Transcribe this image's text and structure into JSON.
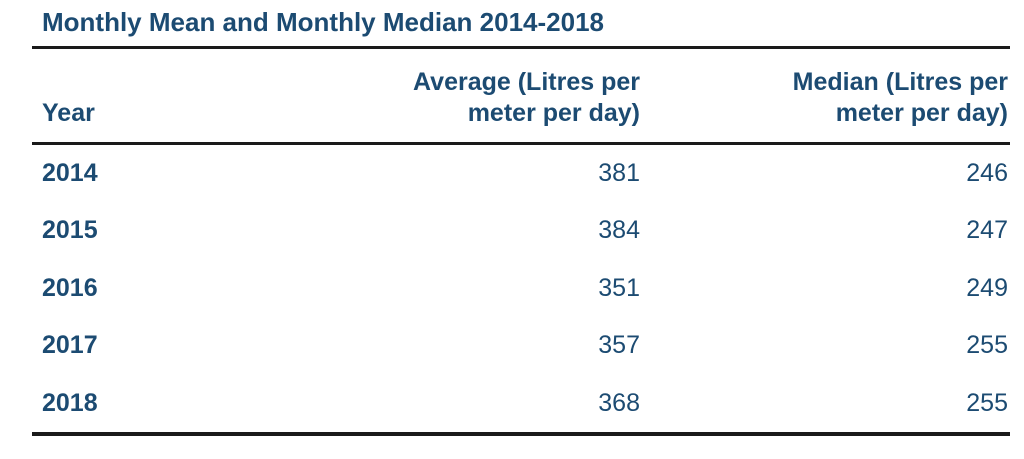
{
  "page": {
    "title": "Monthly Mean and Monthly Median 2014-2018"
  },
  "colors": {
    "text": "#1C4B72",
    "rule": "#1a1a1a",
    "background": "#ffffff"
  },
  "table": {
    "columns": [
      {
        "label": "Year",
        "lines": [
          "Year"
        ]
      },
      {
        "label": "Average (Litres per meter per day)",
        "lines": [
          "Average (Litres per",
          "meter per day)"
        ]
      },
      {
        "label": "Median (Litres per meter per day)",
        "lines": [
          "Median (Litres per",
          "meter per day)"
        ]
      }
    ],
    "rows": [
      {
        "year": "2014",
        "average": "381",
        "median": "246"
      },
      {
        "year": "2015",
        "average": "384",
        "median": "247"
      },
      {
        "year": "2016",
        "average": "351",
        "median": "249"
      },
      {
        "year": "2017",
        "average": "357",
        "median": "255"
      },
      {
        "year": "2018",
        "average": "368",
        "median": "255"
      }
    ]
  },
  "chart_data": {
    "type": "table",
    "title": "Monthly Mean and Monthly Median 2014-2018",
    "categories": [
      "2014",
      "2015",
      "2016",
      "2017",
      "2018"
    ],
    "series": [
      {
        "name": "Average (Litres per meter per day)",
        "values": [
          381,
          384,
          351,
          357,
          368
        ]
      },
      {
        "name": "Median (Litres per meter per day)",
        "values": [
          246,
          247,
          249,
          255,
          255
        ]
      }
    ]
  }
}
